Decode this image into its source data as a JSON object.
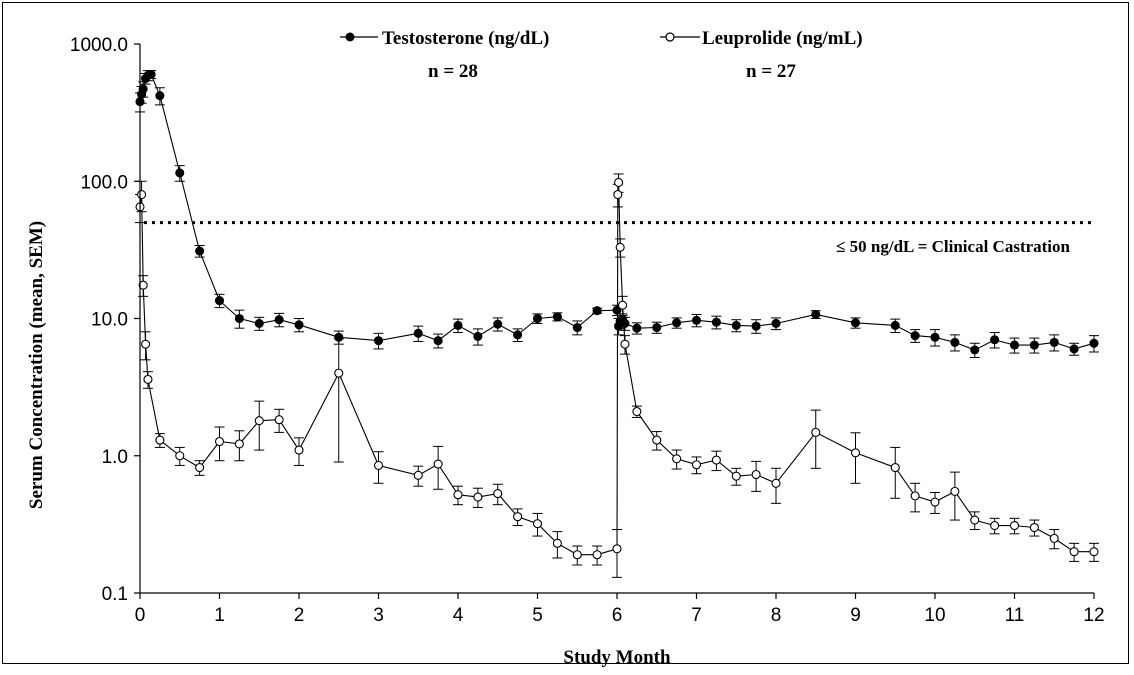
{
  "chart_data": {
    "type": "line",
    "title": "",
    "xlabel": "Study Month",
    "ylabel": "Serum Concentration (mean, SEM)",
    "xlim": [
      0,
      12
    ],
    "ylim": [
      0.1,
      1000
    ],
    "y_scale": "log",
    "x_ticks": [
      "0",
      "1",
      "2",
      "3",
      "4",
      "5",
      "6",
      "7",
      "8",
      "9",
      "10",
      "11",
      "12"
    ],
    "y_ticks": [
      "0.1",
      "1.0",
      "10.0",
      "100.0",
      "1000.0"
    ],
    "grid": false,
    "legend_position": "top",
    "series": [
      {
        "name": "Testosterone (ng/dL)",
        "n_label": "n = 28",
        "marker": "filled-circle",
        "color": "#000000",
        "x": [
          0,
          0.02,
          0.04,
          0.07,
          0.1,
          0.14,
          0.25,
          0.5,
          0.75,
          1.0,
          1.25,
          1.5,
          1.75,
          2.0,
          2.5,
          3.0,
          3.5,
          3.75,
          4.0,
          4.25,
          4.5,
          4.75,
          5.0,
          5.25,
          5.5,
          5.75,
          6.0,
          6.02,
          6.04,
          6.07,
          6.1,
          6.25,
          6.5,
          6.75,
          7.0,
          7.25,
          7.5,
          7.75,
          8.0,
          8.5,
          9.0,
          9.5,
          9.75,
          10.0,
          10.25,
          10.5,
          10.75,
          11.0,
          11.25,
          11.5,
          11.75,
          12.0
        ],
        "y": [
          380,
          430,
          470,
          560,
          590,
          600,
          420,
          115,
          31,
          13.5,
          10,
          9.2,
          9.8,
          9.0,
          7.3,
          6.9,
          7.8,
          6.9,
          8.9,
          7.4,
          9.1,
          7.6,
          10,
          10.3,
          8.6,
          11.4,
          11.5,
          8.8,
          9.6,
          9.8,
          9.2,
          8.5,
          8.6,
          9.3,
          9.7,
          9.4,
          8.9,
          8.8,
          9.2,
          10.7,
          9.3,
          8.9,
          7.5,
          7.3,
          6.7,
          5.9,
          7.0,
          6.4,
          6.4,
          6.7,
          6.0,
          6.6
        ],
        "sem": [
          60,
          60,
          60,
          50,
          50,
          40,
          60,
          15,
          3,
          1.5,
          1.5,
          1.0,
          1.1,
          1.0,
          0.8,
          0.9,
          1.0,
          0.8,
          1.0,
          1.0,
          1.0,
          0.8,
          0.8,
          0.7,
          1.0,
          0.5,
          1.0,
          1.2,
          1.2,
          1.0,
          1.0,
          0.8,
          0.8,
          0.8,
          1.0,
          1.0,
          0.9,
          1.0,
          0.9,
          0.7,
          0.8,
          1.0,
          0.8,
          1.0,
          0.9,
          0.7,
          0.9,
          0.8,
          0.8,
          0.9,
          0.6,
          0.9
        ]
      },
      {
        "name": "Leuprolide (ng/mL)",
        "n_label": "n = 27",
        "marker": "open-circle",
        "color": "#000000",
        "x": [
          0,
          0.02,
          0.04,
          0.07,
          0.1,
          0.25,
          0.5,
          0.75,
          1.0,
          1.25,
          1.5,
          1.75,
          2.0,
          2.5,
          3.0,
          3.5,
          3.75,
          4.0,
          4.25,
          4.5,
          4.75,
          5.0,
          5.25,
          5.5,
          5.75,
          6.0,
          6.01,
          6.02,
          6.04,
          6.07,
          6.1,
          6.25,
          6.5,
          6.75,
          7.0,
          7.25,
          7.5,
          7.75,
          8.0,
          8.5,
          9.0,
          9.5,
          9.75,
          10.0,
          10.25,
          10.5,
          10.75,
          11.0,
          11.25,
          11.5,
          11.75,
          12.0
        ],
        "y": [
          65,
          80,
          17.5,
          6.5,
          3.6,
          1.3,
          1.0,
          0.82,
          1.27,
          1.22,
          1.8,
          1.83,
          1.1,
          4.0,
          0.85,
          0.72,
          0.87,
          0.52,
          0.5,
          0.53,
          0.36,
          0.32,
          0.23,
          0.19,
          0.19,
          0.21,
          80,
          98,
          33,
          12.5,
          6.5,
          2.1,
          1.3,
          0.95,
          0.86,
          0.93,
          0.71,
          0.73,
          0.63,
          1.48,
          1.05,
          0.82,
          0.51,
          0.46,
          0.55,
          0.34,
          0.31,
          0.31,
          0.3,
          0.25,
          0.2,
          0.2
        ],
        "sem": [
          15,
          20,
          3,
          1.5,
          0.5,
          0.15,
          0.15,
          0.1,
          0.35,
          0.3,
          0.7,
          0.35,
          0.25,
          3.1,
          0.22,
          0.12,
          0.3,
          0.08,
          0.08,
          0.09,
          0.05,
          0.06,
          0.05,
          0.03,
          0.03,
          0.08,
          15,
          15,
          5,
          2,
          1,
          0.2,
          0.2,
          0.15,
          0.12,
          0.15,
          0.1,
          0.18,
          0.18,
          0.67,
          0.42,
          0.33,
          0.12,
          0.08,
          0.21,
          0.05,
          0.04,
          0.04,
          0.04,
          0.04,
          0.03,
          0.03
        ]
      }
    ],
    "reference_line": {
      "y": 50,
      "style": "dotted",
      "label": "≤ 50 ng/dL = Clinical Castration"
    }
  }
}
